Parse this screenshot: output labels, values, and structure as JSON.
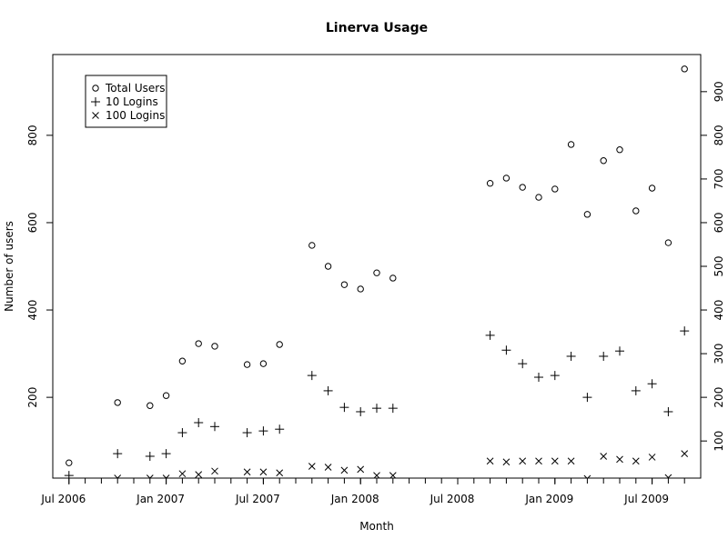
{
  "chart_data": {
    "type": "scatter",
    "title": "Linerva Usage",
    "xlabel": "Month",
    "ylabel": "Number of users",
    "ylim": [
      15,
      985
    ],
    "xlim": [
      "2006-06",
      "2009-10"
    ],
    "grid": false,
    "legend_placement": "top-left",
    "x_tick_labels": [
      "Jul 2006",
      "Jan 2007",
      "Jul 2007",
      "Jan 2008",
      "Jul 2008",
      "Jan 2009",
      "Jul 2009"
    ],
    "x_tick_months": [
      "2006-07",
      "2007-01",
      "2007-07",
      "2008-01",
      "2008-07",
      "2009-01",
      "2009-07"
    ],
    "y_left_ticks": [
      200,
      400,
      600,
      800
    ],
    "y_right_ticks": [
      100,
      200,
      300,
      400,
      500,
      600,
      700,
      800,
      900
    ],
    "x": [
      "2006-07",
      "2006-10",
      "2006-12",
      "2007-01",
      "2007-02",
      "2007-03",
      "2007-04",
      "2007-06",
      "2007-07",
      "2007-08",
      "2007-10",
      "2007-11",
      "2007-12",
      "2008-01",
      "2008-02",
      "2008-03",
      "2008-09",
      "2008-10",
      "2008-11",
      "2008-12",
      "2009-01",
      "2009-02",
      "2009-03",
      "2009-04",
      "2009-05",
      "2009-06",
      "2009-07",
      "2009-08",
      "2009-09"
    ],
    "series": [
      {
        "name": "Total Users",
        "marker": "circle",
        "values": [
          50,
          188,
          181,
          204,
          283,
          323,
          317,
          275,
          277,
          321,
          548,
          500,
          458,
          448,
          485,
          473,
          690,
          702,
          681,
          658,
          677,
          779,
          619,
          742,
          767,
          627,
          679,
          554,
          952
        ]
      },
      {
        "name": "10 Logins",
        "marker": "plus",
        "values": [
          21,
          71,
          65,
          71,
          119,
          142,
          133,
          119,
          123,
          127,
          250,
          215,
          177,
          167,
          175,
          175,
          342,
          308,
          277,
          246,
          250,
          294,
          200,
          294,
          306,
          215,
          231,
          167,
          352
        ]
      },
      {
        "name": "100 Logins",
        "marker": "cross",
        "values": [
          null,
          15,
          15,
          15,
          25,
          23,
          31,
          29,
          29,
          27,
          42,
          40,
          33,
          35,
          21,
          21,
          54,
          52,
          54,
          54,
          54,
          54,
          14,
          65,
          58,
          54,
          63,
          16,
          71
        ]
      }
    ]
  }
}
